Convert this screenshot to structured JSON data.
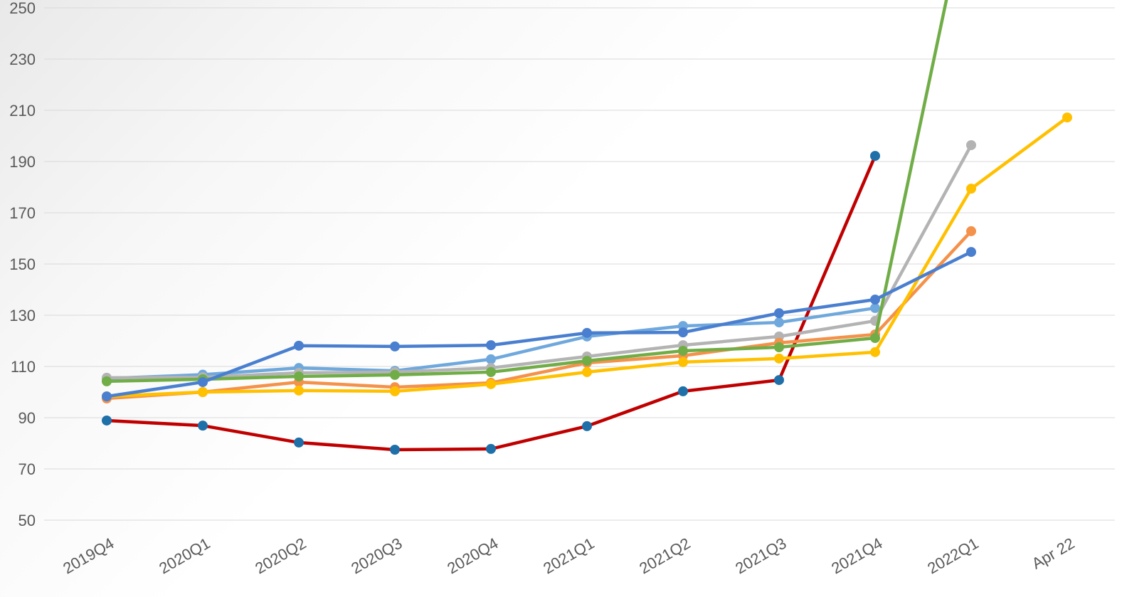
{
  "chart_data": {
    "type": "line",
    "categories": [
      "2019Q4",
      "2020Q1",
      "2020Q2",
      "2020Q3",
      "2020Q4",
      "2021Q1",
      "2021Q2",
      "2021Q3",
      "2021Q4",
      "2022Q1",
      "Apr 22"
    ],
    "ylim": [
      50,
      250
    ],
    "yticks": [
      50,
      70,
      90,
      110,
      130,
      150,
      170,
      190,
      210,
      230,
      250
    ],
    "grid": true,
    "series": [
      {
        "color": "#c00000",
        "marker_color": "#1f6fa8",
        "values": [
          88.9,
          86.9,
          80.3,
          77.5,
          77.8,
          86.7,
          100.3,
          104.7,
          192.2,
          null,
          null
        ]
      },
      {
        "color": "#6fa8dc",
        "values": [
          105.3,
          106.8,
          109.4,
          108.3,
          112.8,
          121.7,
          125.8,
          127.2,
          132.8,
          null,
          null
        ]
      },
      {
        "color": "#b3b3b3",
        "values": [
          105.6,
          105.8,
          107.5,
          107.8,
          109.4,
          113.9,
          118.3,
          121.7,
          127.8,
          196.4,
          null
        ]
      },
      {
        "color": "#f4914a",
        "values": [
          97.5,
          100,
          103.9,
          101.9,
          103.6,
          111.4,
          114.2,
          119.2,
          122.5,
          162.8,
          null
        ]
      },
      {
        "color": "#ffc000",
        "values": [
          98.3,
          100,
          100.6,
          100.3,
          103.1,
          107.8,
          111.7,
          113.1,
          115.6,
          179.4,
          207.2
        ]
      },
      {
        "color": "#70ad47",
        "values": [
          104.2,
          105,
          106.1,
          106.7,
          107.8,
          112.2,
          116.1,
          117.5,
          121.1,
          299,
          null
        ]
      },
      {
        "color": "#4a7fd0",
        "values": [
          98.3,
          103.9,
          118.1,
          117.8,
          118.3,
          123.1,
          123.3,
          130.8,
          136.1,
          154.7,
          null
        ]
      }
    ]
  }
}
